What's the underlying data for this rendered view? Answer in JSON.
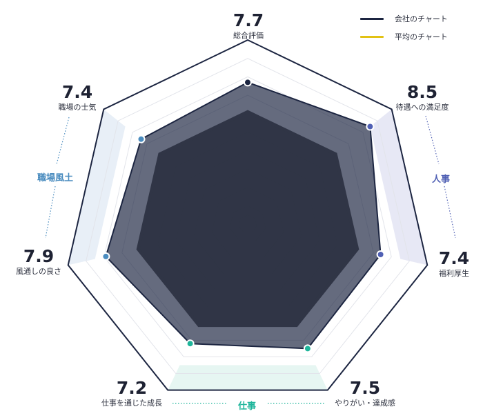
{
  "legend": {
    "company_label": "会社のチャート",
    "average_label": "平均のチャート"
  },
  "groups": {
    "workplace": "職場風土",
    "hr": "人事",
    "work": "仕事"
  },
  "colors": {
    "company": "#1c2541",
    "average": "#e2c214",
    "grid": "#e2e4ea",
    "workplace": "#4a8cbf",
    "hr": "#5060b4",
    "work": "#1fb59b"
  },
  "chart_data": {
    "type": "radar",
    "categories": [
      "総合評価",
      "待遇への満足度",
      "福利厚生",
      "やりがい・達成感",
      "仕事を通じた成長",
      "風通しの良さ",
      "職場の士気"
    ],
    "value_labels": [
      "7.7",
      "8.5",
      "7.4",
      "7.5",
      "7.2",
      "7.9",
      "7.4"
    ],
    "series": [
      {
        "name": "会社のチャート",
        "values": [
          7.7,
          8.5,
          7.4,
          7.5,
          7.2,
          7.9,
          7.4
        ]
      },
      {
        "name": "平均のチャート",
        "values": [
          6.2,
          6.2,
          6.2,
          6.2,
          6.2,
          6.2,
          6.2
        ]
      }
    ],
    "range": [
      0,
      10
    ],
    "grid": true,
    "legend_position": "top-right"
  }
}
